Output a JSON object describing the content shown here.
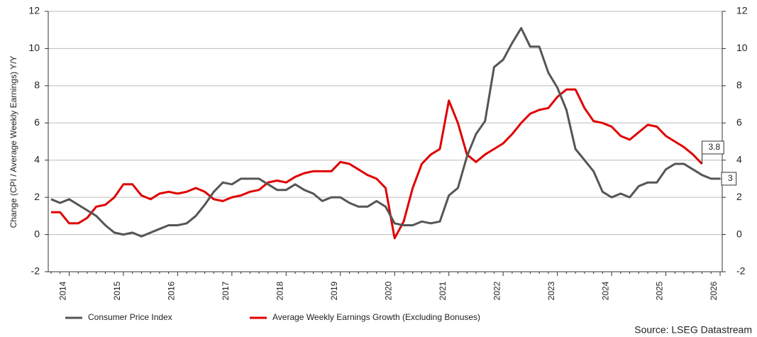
{
  "chart_data": {
    "type": "line",
    "ylabel": "Change (CPI / Average Weekly Earnings) Y/Y",
    "source": "Source: LSEG Datastream",
    "categories": [
      null,
      null,
      "2014",
      null,
      null,
      null,
      null,
      null,
      "2015",
      null,
      null,
      null,
      null,
      null,
      "2016",
      null,
      null,
      null,
      null,
      null,
      "2017",
      null,
      null,
      null,
      null,
      null,
      "2018",
      null,
      null,
      null,
      null,
      null,
      "2019",
      null,
      null,
      null,
      null,
      null,
      "2020",
      null,
      null,
      null,
      null,
      null,
      "2021",
      null,
      null,
      null,
      null,
      null,
      "2022",
      null,
      null,
      null,
      null,
      null,
      "2023",
      null,
      null,
      null,
      null,
      null,
      "2024",
      null,
      null,
      null,
      null,
      null,
      "2025",
      null,
      null,
      null,
      null,
      null,
      "2026"
    ],
    "series": [
      {
        "name": "Consumer Price Index",
        "color": "#555555",
        "values": [
          1.9,
          1.7,
          1.9,
          1.6,
          1.3,
          1.0,
          0.5,
          0.1,
          0.0,
          0.1,
          -0.1,
          0.1,
          0.3,
          0.5,
          0.5,
          0.6,
          1.0,
          1.6,
          2.3,
          2.8,
          2.7,
          3.0,
          3.0,
          3.0,
          2.7,
          2.4,
          2.4,
          2.7,
          2.4,
          2.2,
          1.8,
          2.0,
          2.0,
          1.7,
          1.5,
          1.5,
          1.8,
          1.5,
          0.6,
          0.5,
          0.5,
          0.7,
          0.6,
          0.7,
          2.1,
          2.5,
          4.2,
          5.4,
          6.1,
          9.0,
          9.4,
          10.3,
          11.1,
          10.1,
          10.1,
          8.7,
          7.9,
          6.7,
          4.6,
          4.0,
          3.4,
          2.3,
          2.0,
          2.2,
          2.0,
          2.6,
          2.8,
          2.8,
          3.5,
          3.8,
          3.8,
          3.5,
          3.2,
          3.0,
          3
        ]
      },
      {
        "name": "Average Weekly Earnings Growth (Excluding Bonuses)",
        "color": "#e00000",
        "values": [
          1.2,
          1.2,
          0.6,
          0.6,
          0.9,
          1.5,
          1.6,
          2.0,
          2.7,
          2.7,
          2.1,
          1.9,
          2.2,
          2.3,
          2.2,
          2.3,
          2.5,
          2.3,
          1.9,
          1.8,
          2.0,
          2.1,
          2.3,
          2.4,
          2.8,
          2.9,
          2.8,
          3.1,
          3.3,
          3.4,
          3.4,
          3.4,
          3.9,
          3.8,
          3.5,
          3.2,
          3.0,
          2.5,
          -0.2,
          0.7,
          2.5,
          3.8,
          4.3,
          4.6,
          7.2,
          6.0,
          4.3,
          3.9,
          4.3,
          4.6,
          4.9,
          5.4,
          6.0,
          6.5,
          6.7,
          6.8,
          7.4,
          7.8,
          7.8,
          6.8,
          6.1,
          6.0,
          5.8,
          5.3,
          5.1,
          5.5,
          5.9,
          5.8,
          5.3,
          5.0,
          4.7,
          4.3,
          3.8,
          null,
          null
        ]
      }
    ],
    "ylim": [
      -2,
      12
    ],
    "yticks": [
      -2,
      0,
      2,
      4,
      6,
      8,
      10,
      12
    ],
    "y2lim": [
      -2,
      12
    ],
    "y2ticks": [
      -2,
      0,
      2,
      4,
      6,
      8,
      10,
      12
    ],
    "grid": true
  }
}
